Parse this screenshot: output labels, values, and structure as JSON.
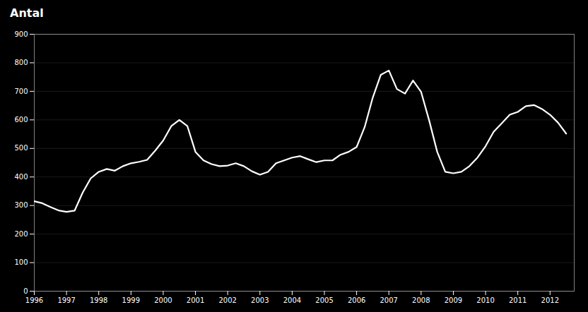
{
  "chart_data": {
    "type": "line",
    "title": "Antal",
    "x": [
      1996.0,
      1996.25,
      1996.5,
      1996.75,
      1997.0,
      1997.25,
      1997.5,
      1997.75,
      1998.0,
      1998.25,
      1998.5,
      1998.75,
      1999.0,
      1999.25,
      1999.5,
      1999.75,
      2000.0,
      2000.25,
      2000.5,
      2000.75,
      2001.0,
      2001.25,
      2001.5,
      2001.75,
      2002.0,
      2002.25,
      2002.5,
      2002.75,
      2003.0,
      2003.25,
      2003.5,
      2003.75,
      2004.0,
      2004.25,
      2004.5,
      2004.75,
      2005.0,
      2005.25,
      2005.5,
      2005.75,
      2006.0,
      2006.25,
      2006.5,
      2006.75,
      2007.0,
      2007.25,
      2007.5,
      2007.75,
      2008.0,
      2008.25,
      2008.5,
      2008.75,
      2009.0,
      2009.25,
      2009.5,
      2009.75,
      2010.0,
      2010.25,
      2010.5,
      2010.75,
      2011.0,
      2011.25,
      2011.5,
      2011.75,
      2012.0,
      2012.25,
      2012.5
    ],
    "values": [
      315,
      308,
      295,
      283,
      278,
      282,
      345,
      395,
      418,
      428,
      422,
      438,
      448,
      453,
      460,
      492,
      528,
      578,
      600,
      578,
      488,
      458,
      445,
      438,
      440,
      448,
      438,
      420,
      408,
      418,
      448,
      458,
      468,
      473,
      462,
      452,
      458,
      458,
      478,
      488,
      505,
      575,
      678,
      758,
      773,
      708,
      692,
      738,
      698,
      598,
      488,
      418,
      413,
      418,
      438,
      468,
      508,
      558,
      588,
      618,
      628,
      648,
      652,
      638,
      618,
      590,
      552
    ],
    "color": "#ffffff",
    "xlim": [
      1996,
      2012.75
    ],
    "xticks": [
      1996,
      1997,
      1998,
      1999,
      2000,
      2001,
      2002,
      2003,
      2004,
      2005,
      2006,
      2007,
      2008,
      2009,
      2010,
      2011,
      2012
    ],
    "ylim": [
      0,
      900
    ],
    "yticks": [
      0,
      100,
      200,
      300,
      400,
      500,
      600,
      700,
      800,
      900
    ],
    "grid": "y"
  }
}
